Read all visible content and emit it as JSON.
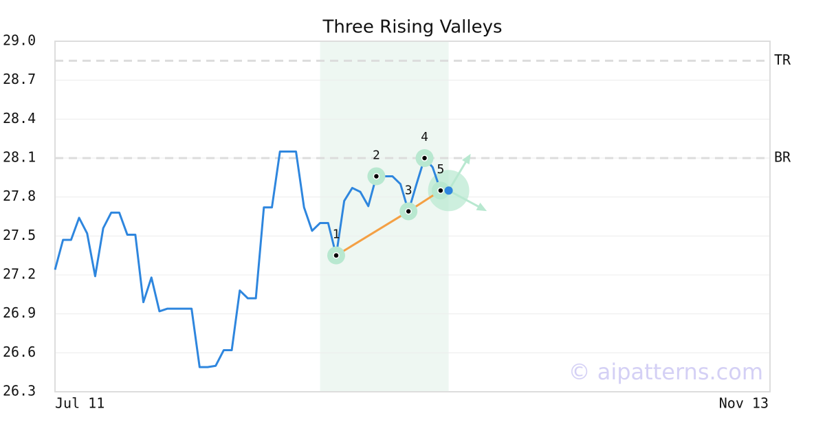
{
  "chart_data": {
    "type": "line",
    "title": "Three Rising Valleys",
    "categories": [
      "Jul 11",
      null,
      null,
      null,
      null,
      null,
      null,
      null,
      null,
      null,
      null,
      null,
      null,
      null,
      null,
      null,
      null,
      null,
      null,
      null,
      null,
      null,
      null,
      null,
      null,
      null,
      null,
      null,
      null,
      null,
      null,
      null,
      null,
      null,
      null,
      null,
      null,
      null,
      null,
      null,
      null,
      null,
      null,
      null,
      null,
      null,
      null,
      null,
      null,
      null,
      null,
      null,
      null,
      null,
      null,
      null,
      null,
      null,
      null,
      null,
      null,
      null,
      null,
      null,
      null,
      null,
      null,
      null,
      null,
      null,
      null,
      null,
      null,
      null,
      null,
      null,
      null,
      null,
      null,
      null,
      null,
      null,
      null,
      null,
      null,
      null,
      null,
      null,
      null,
      "Nov 13"
    ],
    "series": [
      {
        "color": "#2e86de",
        "values": [
          27.24,
          27.47,
          27.47,
          27.64,
          27.52,
          27.19,
          27.56,
          27.68,
          27.68,
          27.51,
          27.51,
          26.99,
          27.18,
          26.92,
          26.94,
          26.94,
          26.94,
          26.94,
          26.49,
          26.49,
          26.5,
          26.62,
          26.62,
          27.08,
          27.02,
          27.02,
          27.72,
          27.72,
          28.15,
          28.15,
          28.15,
          27.72,
          27.54,
          27.6,
          27.6,
          27.35,
          27.77,
          27.87,
          27.84,
          27.73,
          27.96,
          27.96,
          27.96,
          27.9,
          27.69,
          27.9,
          28.1,
          28.03,
          27.85,
          27.85,
          null,
          null,
          null,
          null,
          null,
          null,
          null,
          null,
          null,
          null,
          null,
          null,
          null,
          null,
          null,
          null,
          null,
          null,
          null,
          null,
          null,
          null,
          null,
          null,
          null,
          null,
          null,
          null,
          null,
          null,
          null,
          null,
          null,
          null,
          null,
          null,
          null,
          null,
          null,
          null
        ]
      }
    ],
    "ylim": [
      26.3,
      29
    ],
    "yticks": [
      26.3,
      26.6,
      26.9,
      27.2,
      27.5,
      27.8,
      28.1,
      28.4,
      28.7,
      {
        "value": 29,
        "label": "29.0"
      }
    ],
    "grid": true,
    "levels": [
      {
        "label": "TR",
        "value": 28.85
      },
      {
        "label": "BR",
        "value": 28.1
      }
    ],
    "highlight": {
      "x": [
        33,
        49
      ],
      "color": "#eef7f2"
    },
    "pivots": {
      "labels": [
        "1",
        "2",
        "3",
        "4",
        "5"
      ],
      "x": [
        35,
        40,
        44,
        46,
        48
      ],
      "values": [
        27.35,
        27.96,
        27.69,
        28.1,
        27.85
      ],
      "color": "#b8e8d0"
    },
    "trend_color": "#f4a044",
    "watermark": "© aipatterns.com"
  }
}
